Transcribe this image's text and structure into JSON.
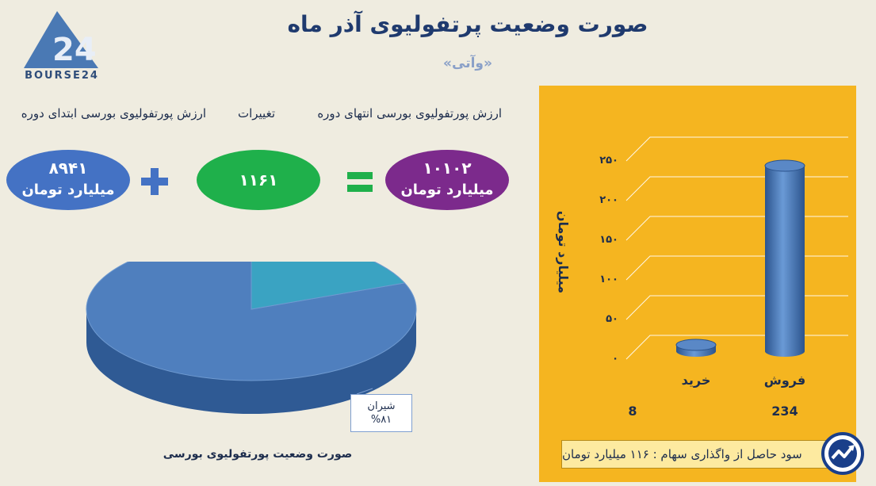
{
  "brand": {
    "logo_text": "BOURSE24"
  },
  "header": {
    "title": "صورت وضعیت پرتفولیوی آذر ماه",
    "subtitle": "«وآتی»"
  },
  "summary": {
    "start_label": "ارزش پورتفولیوی بورسی ابتدای دوره",
    "change_label": "تغییرات",
    "end_label": "ارزش پورتفولیوی بورسی انتهای دوره",
    "start_value": "۸۹۴۱",
    "start_unit": "میلیارد تومان",
    "change_value": "۱۱۶۱",
    "end_value": "۱۰۱۰۲",
    "end_unit": "میلیارد تومان",
    "colors": {
      "start": "#4472c4",
      "change": "#1fb04b",
      "end": "#7c2a8c",
      "plus": "#4472c4",
      "equals": "#1fb04b"
    }
  },
  "chart_data": [
    {
      "type": "pie",
      "title": "صورت وضعیت پورتفولیوی بورسی",
      "slices": [
        {
          "label": "شیران",
          "value": 81,
          "value_label": "%۸۱",
          "color": "#4f7fbe"
        },
        {
          "label": "",
          "value": 19,
          "color": "#3aa3c2"
        }
      ]
    },
    {
      "type": "bar",
      "categories": [
        "خرید",
        "فروش"
      ],
      "values": [
        8,
        234
      ],
      "value_labels": [
        "8",
        "234"
      ],
      "ylabel": "میلیارد تومان",
      "ylim": [
        0,
        250
      ],
      "yticks": [
        0,
        50,
        100,
        150,
        200,
        250
      ],
      "ytick_labels": [
        "۰",
        "۵۰",
        "۱۰۰",
        "۱۵۰",
        "۲۰۰",
        "۲۵۰"
      ],
      "grid": true,
      "bar_color": "#4f7fbe",
      "background": "#f5b520"
    }
  ],
  "profit_note": "سود حاصل از واگذاری سهام : ۱۱۶ میلیارد تومان"
}
